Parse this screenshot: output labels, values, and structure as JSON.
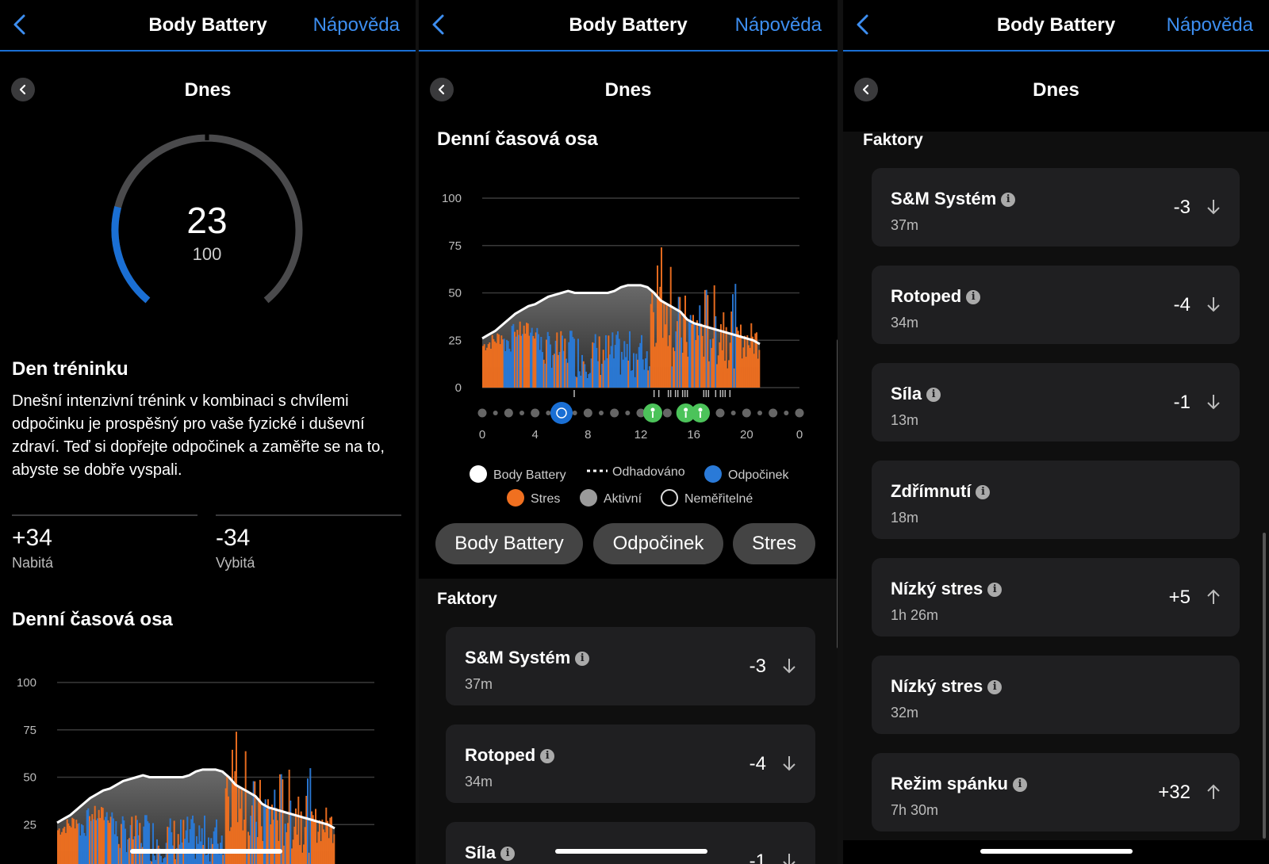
{
  "header": {
    "title": "Body Battery",
    "help": "Nápověda"
  },
  "date_label": "Dnes",
  "gauge": {
    "value": "23",
    "max": "100",
    "level": 0.23
  },
  "training": {
    "title": "Den tréninku",
    "text": "Dnešní intenzivní trénink v kombinaci s chvílemi odpočinku je prospěšný pro vaše fyzické i duševní zdraví. Teď si dopřejte odpočinek a zaměřte se na to, abyste se dobře vyspali."
  },
  "stats": {
    "charged_value": "+34",
    "charged_label": "Nabitá",
    "drained_value": "-34",
    "drained_label": "Vybitá"
  },
  "timeline_title": "Denní časová osa",
  "factors_title": "Faktory",
  "legend": {
    "body_battery": "Body Battery",
    "estimated": "Odhadováno",
    "rest": "Odpočinek",
    "stress": "Stres",
    "active": "Aktivní",
    "unmeasurable": "Neměřitelné"
  },
  "filters": [
    "Body Battery",
    "Odpočinek",
    "Stres"
  ],
  "factors": [
    {
      "name": "S&M Systém",
      "duration": "37m",
      "value": "-3",
      "dir": "down"
    },
    {
      "name": "Rotoped",
      "duration": "34m",
      "value": "-4",
      "dir": "down"
    },
    {
      "name": "Síla",
      "duration": "13m",
      "value": "-1",
      "dir": "down"
    },
    {
      "name": "Zdřímnutí",
      "duration": "18m",
      "value": "",
      "dir": ""
    },
    {
      "name": "Nízký stres",
      "duration": "1h 26m",
      "value": "+5",
      "dir": "up"
    },
    {
      "name": "Nízký stres",
      "duration": "32m",
      "value": "",
      "dir": ""
    },
    {
      "name": "Režim spánku",
      "duration": "7h 30m",
      "value": "+32",
      "dir": "up"
    }
  ],
  "colors": {
    "accent": "#1a6fd4",
    "link": "#3d8ef0",
    "stress": "#f07020",
    "rest": "#2a7ad8",
    "activity": "#4cc35a"
  },
  "chart_data": {
    "type": "area",
    "title": "Denní časová osa",
    "xlabel": "",
    "ylabel": "",
    "ylim": [
      0,
      100
    ],
    "yticks": [
      "100",
      "75",
      "50",
      "25",
      "0"
    ],
    "xticks": [
      "0",
      "4",
      "8",
      "12",
      "16",
      "20",
      "0"
    ],
    "x_hours": [
      0,
      0.5,
      1,
      1.5,
      2,
      2.5,
      3,
      3.5,
      4,
      4.5,
      5,
      5.5,
      6,
      6.5,
      7,
      7.5,
      8,
      8.5,
      9,
      9.5,
      10,
      10.5,
      11,
      11.5,
      12,
      12.5,
      13,
      13.5,
      14,
      14.5,
      15,
      15.5,
      16,
      16.5,
      17,
      17.5,
      18,
      18.5,
      19,
      19.5,
      20,
      20.5,
      21
    ],
    "series": [
      {
        "name": "Body Battery",
        "values": [
          26,
          28,
          30,
          33,
          36,
          39,
          41,
          43,
          44,
          46,
          48,
          49,
          50,
          51,
          50,
          50,
          50,
          50,
          50,
          50,
          51,
          53,
          54,
          54,
          54,
          53,
          50,
          46,
          44,
          42,
          40,
          36,
          34,
          33,
          32,
          31,
          30,
          29,
          28,
          27,
          26,
          25,
          23
        ]
      }
    ]
  }
}
